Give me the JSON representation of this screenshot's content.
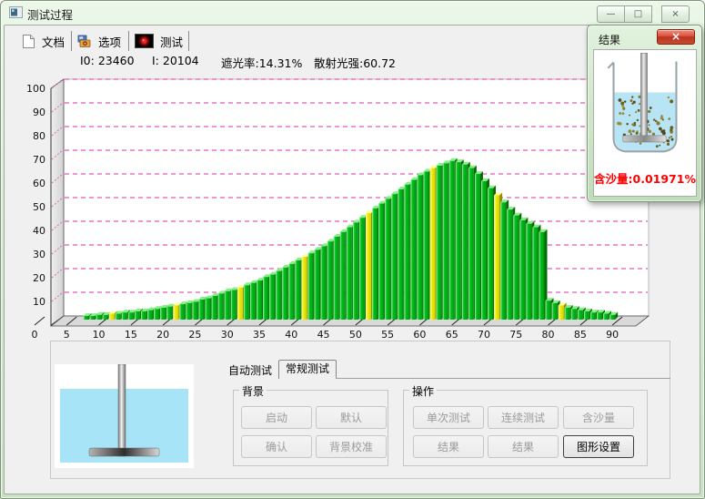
{
  "window": {
    "title": "测试过程",
    "controls": [
      {
        "name": "minimize",
        "glyph": "—"
      },
      {
        "name": "maximize",
        "glyph": "□"
      },
      {
        "name": "close",
        "glyph": "×"
      }
    ]
  },
  "toolbar": {
    "tabs": [
      {
        "label": "文档",
        "icon": "document-icon"
      },
      {
        "label": "选项",
        "icon": "options-icon"
      },
      {
        "label": "测试",
        "icon": "laser-icon",
        "active": true
      }
    ]
  },
  "stats": {
    "i0": "I0: 23460",
    "i": "I: 20104",
    "obscuration": "遮光率:14.31%",
    "scatter_intensity": "散射光强:60.72"
  },
  "chart_data": {
    "type": "bar",
    "style": "pseudo-3d vertical bars, one bar per unit",
    "x": [
      8,
      9,
      10,
      11,
      12,
      13,
      14,
      15,
      16,
      17,
      18,
      19,
      20,
      21,
      22,
      23,
      24,
      25,
      26,
      27,
      28,
      29,
      30,
      31,
      32,
      33,
      34,
      35,
      36,
      37,
      38,
      39,
      40,
      41,
      42,
      43,
      44,
      45,
      46,
      47,
      48,
      49,
      50,
      51,
      52,
      53,
      54,
      55,
      56,
      57,
      58,
      59,
      60,
      61,
      62,
      63,
      64,
      65,
      66,
      67,
      68,
      69,
      70,
      71,
      72,
      73,
      74,
      75,
      76,
      77,
      78,
      79,
      80,
      81,
      82,
      83,
      84,
      85,
      86,
      87,
      88,
      89,
      90
    ],
    "values": [
      1.5,
      1.5,
      2,
      2,
      2.5,
      2.5,
      3,
      3,
      3.5,
      3.5,
      4,
      4.5,
      5,
      5.5,
      6,
      6.5,
      7,
      7.5,
      8.5,
      9,
      10,
      11,
      12,
      12.5,
      13.5,
      14.5,
      15.5,
      16.5,
      18,
      19,
      20.5,
      22,
      23.5,
      25,
      26.5,
      28,
      29.5,
      31,
      33,
      35,
      37,
      39,
      41,
      43,
      45,
      47,
      49,
      51,
      53,
      55,
      57,
      59,
      61,
      62.5,
      64,
      65,
      66,
      67,
      66.5,
      65.5,
      64,
      61.5,
      58.5,
      55.5,
      52.5,
      49.5,
      46.5,
      44,
      42,
      40.5,
      39,
      37,
      8,
      7,
      6,
      5,
      4.5,
      4,
      3.5,
      3,
      3,
      2.5,
      2
    ],
    "highlighted_x": [
      12,
      22,
      32,
      42,
      52,
      62,
      72,
      82
    ],
    "x_ticks": [
      0,
      5,
      10,
      15,
      20,
      25,
      30,
      35,
      40,
      45,
      50,
      55,
      60,
      65,
      70,
      75,
      80,
      85,
      90
    ],
    "y_ticks": [
      10,
      20,
      30,
      40,
      50,
      60,
      70,
      80,
      90,
      100
    ],
    "xlim": [
      0,
      95
    ],
    "ylim": [
      0,
      100
    ],
    "title": "",
    "xlabel": "",
    "ylabel": "",
    "grid": "horizontal dashed",
    "grid_color": "#df2fa8",
    "bar_color": "#00c31d",
    "bar_side_color": "#056b05",
    "bar_top_color": "#86ef86",
    "highlight_color": "#f2ef0a",
    "highlight_side_color": "#8f8f00",
    "highlight_top_color": "#ffff9e",
    "wall_color": "#e0e0e0",
    "background": "#ffffff"
  },
  "result_popup": {
    "title": "结果",
    "close_glyph": "×",
    "sand_content": "含沙量:0.01971%",
    "text_color": "#ff0000"
  },
  "bottom_panel": {
    "tabs": [
      {
        "label": "自动测试",
        "active": false
      },
      {
        "label": "常规测试",
        "active": true
      }
    ],
    "background_group": {
      "title": "背景",
      "buttons": [
        {
          "label": "启动",
          "enabled": false
        },
        {
          "label": "默认",
          "enabled": false
        },
        {
          "label": "确认",
          "enabled": false
        },
        {
          "label": "背景校准",
          "enabled": false
        }
      ]
    },
    "operation_group": {
      "title": "操作",
      "buttons": [
        {
          "label": "单次测试",
          "enabled": false
        },
        {
          "label": "连续测试",
          "enabled": false
        },
        {
          "label": "含沙量",
          "enabled": false
        },
        {
          "label": "结果",
          "enabled": false
        },
        {
          "label": "结果",
          "enabled": false
        },
        {
          "label": "图形设置",
          "enabled": true
        }
      ]
    }
  }
}
